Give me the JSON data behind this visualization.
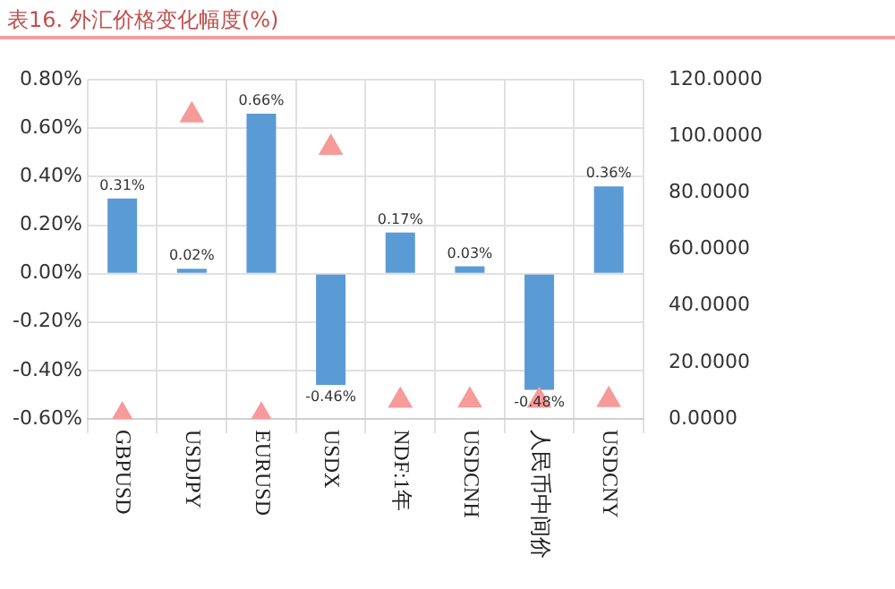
{
  "chart_data": {
    "type": "bar",
    "title": "表16. 外汇价格变化幅度(%)",
    "categories": [
      "GBPUSD",
      "USDJPY",
      "EURUSD",
      "USDX",
      "NDF:1年",
      "USDCNH",
      "人民币中间价",
      "USDCNY"
    ],
    "series": [
      {
        "color": "#5b9bd5",
        "values": [
          0.31,
          0.02,
          0.66,
          -0.46,
          0.17,
          0.03,
          -0.48,
          0.36
        ],
        "value_labels": [
          "0.31%",
          "0.02%",
          "0.66%",
          "-0.46%",
          "0.17%",
          "0.03%",
          "-0.48%",
          "0.36%"
        ]
      },
      {
        "type": "scatter",
        "axis": "y2",
        "color": "#f79a9a",
        "x": [
          "GBPUSD",
          "USDJPY",
          "EURUSD",
          "USDX",
          "NDF:1年",
          "USDCNH",
          "人民币中间价",
          "USDCNY"
        ],
        "values": [
          1.3,
          107.5,
          1.2,
          96,
          6.5,
          6.6,
          6.5,
          6.7
        ]
      }
    ],
    "ylim": [
      -0.6,
      0.8
    ],
    "yticks": [
      {
        "value": -0.6,
        "label": "-0.60%"
      },
      {
        "value": -0.4,
        "label": "-0.40%"
      },
      {
        "value": -0.2,
        "label": "-0.20%"
      },
      {
        "value": 0,
        "label": "0.00%"
      },
      {
        "value": 0.2,
        "label": "0.20%"
      },
      {
        "value": 0.4,
        "label": "0.40%"
      },
      {
        "value": 0.6,
        "label": "0.60%"
      },
      {
        "value": 0.8,
        "label": "0.80%"
      }
    ],
    "y2lim": [
      0,
      120
    ],
    "y2ticks": [
      {
        "value": 0,
        "label": "0.0000"
      },
      {
        "value": 20,
        "label": "20.0000"
      },
      {
        "value": 40,
        "label": "40.0000"
      },
      {
        "value": 60,
        "label": "60.0000"
      },
      {
        "value": 80,
        "label": "80.0000"
      },
      {
        "value": 100,
        "label": "100.0000"
      },
      {
        "value": 120,
        "label": "120.0000"
      }
    ],
    "grid": true,
    "legend": false,
    "marker": "triangle"
  }
}
